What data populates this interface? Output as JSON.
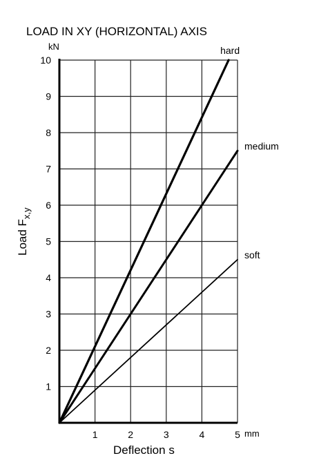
{
  "chart_data": {
    "type": "line",
    "title": "LOAD IN XY (HORIZONTAL) AXIS",
    "xlabel": "Deflection s",
    "ylabel": {
      "main": "Load F",
      "sub": "x,y"
    },
    "x_unit": "mm",
    "y_unit": "kN",
    "xlim": [
      0,
      5
    ],
    "ylim": [
      0,
      10
    ],
    "x_ticks": [
      1,
      2,
      3,
      4,
      5
    ],
    "y_ticks": [
      1,
      2,
      3,
      4,
      5,
      6,
      7,
      8,
      9,
      10
    ],
    "grid": true,
    "series": [
      {
        "name": "hard",
        "x": [
          0,
          4.75
        ],
        "y": [
          0,
          10
        ]
      },
      {
        "name": "medium",
        "x": [
          0,
          5
        ],
        "y": [
          0,
          7.5
        ]
      },
      {
        "name": "soft",
        "x": [
          0,
          5
        ],
        "y": [
          0,
          4.5
        ]
      }
    ]
  }
}
